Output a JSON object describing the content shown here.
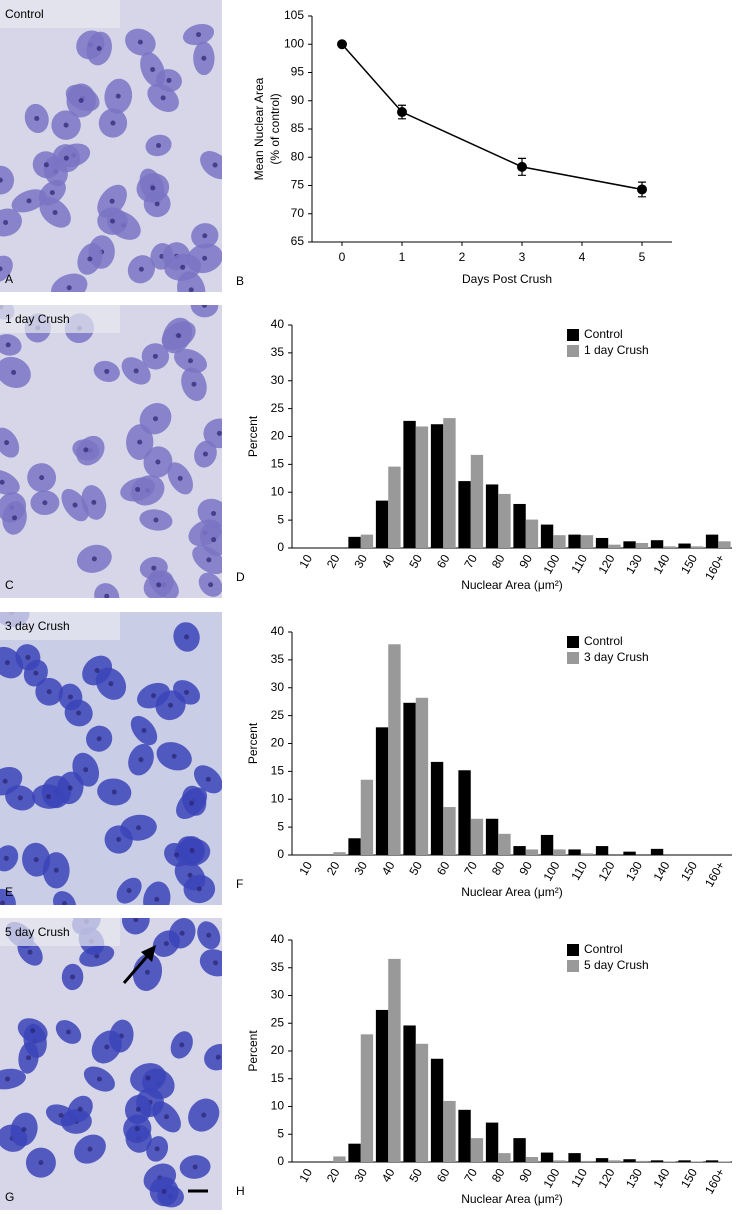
{
  "panels": [
    {
      "letter": "A",
      "label": "Control"
    },
    {
      "letter": "C",
      "label": "1 day Crush"
    },
    {
      "letter": "E",
      "label": "3 day Crush"
    },
    {
      "letter": "G",
      "label": "5 day Crush"
    }
  ],
  "chart_data": [
    {
      "type": "line",
      "panel_label": "B",
      "xlabel": "Days Post Crush",
      "ylabel": "Mean Nuclear Area",
      "ylabel_sub": "(% of control)",
      "x": [
        0,
        1,
        3,
        5
      ],
      "values": [
        100,
        88,
        78.3,
        74.3
      ],
      "errors": [
        0.3,
        1.2,
        1.5,
        1.3
      ],
      "color": "#000000",
      "xlim": [
        -0.5,
        5.5
      ],
      "xticks": [
        0,
        1,
        2,
        3,
        4,
        5
      ],
      "ylim": [
        65,
        105
      ],
      "yticks": [
        65,
        70,
        75,
        80,
        85,
        90,
        95,
        100,
        105
      ]
    },
    {
      "type": "bar",
      "panel_label": "D",
      "xlabel": "Nuclear Area (μm²)",
      "ylabel": "Percent",
      "legend": "upper right",
      "categories": [
        "10",
        "20",
        "30",
        "40",
        "50",
        "60",
        "70",
        "80",
        "90",
        "100",
        "110",
        "120",
        "130",
        "140",
        "150",
        "160+"
      ],
      "series": [
        {
          "name": "Control",
          "color": "#000000",
          "values": [
            0,
            0,
            2.0,
            8.5,
            22.8,
            22.2,
            12.0,
            11.4,
            7.9,
            4.2,
            2.4,
            1.8,
            1.2,
            1.4,
            0.8,
            2.4
          ]
        },
        {
          "name": "1 day Crush",
          "color": "#999999",
          "values": [
            0,
            0,
            2.4,
            14.6,
            21.8,
            23.3,
            16.7,
            9.7,
            5.1,
            2.3,
            2.3,
            0.6,
            0.9,
            0.3,
            0.3,
            1.2
          ]
        }
      ],
      "ylim": [
        0,
        40
      ],
      "yticks": [
        0,
        5,
        10,
        15,
        20,
        25,
        30,
        35,
        40
      ]
    },
    {
      "type": "bar",
      "panel_label": "F",
      "xlabel": "Nuclear Area (μm²)",
      "ylabel": "Percent",
      "legend": "upper right",
      "categories": [
        "10",
        "20",
        "30",
        "40",
        "50",
        "60",
        "70",
        "80",
        "90",
        "100",
        "110",
        "120",
        "130",
        "140",
        "150",
        "160+"
      ],
      "series": [
        {
          "name": "Control",
          "color": "#000000",
          "values": [
            0,
            0,
            3.0,
            22.9,
            27.3,
            16.7,
            15.2,
            6.5,
            1.6,
            3.6,
            1.0,
            1.6,
            0.6,
            1.1,
            0,
            0
          ]
        },
        {
          "name": "3 day Crush",
          "color": "#999999",
          "values": [
            0,
            0.5,
            13.5,
            37.8,
            28.2,
            8.6,
            6.5,
            3.8,
            1.0,
            1.0,
            0.3,
            0,
            0,
            0,
            0,
            0
          ]
        }
      ],
      "ylim": [
        0,
        40
      ],
      "yticks": [
        0,
        5,
        10,
        15,
        20,
        25,
        30,
        35,
        40
      ]
    },
    {
      "type": "bar",
      "panel_label": "H",
      "xlabel": "Nuclear Area (μm²)",
      "ylabel": "Percent",
      "legend": "upper right",
      "categories": [
        "10",
        "20",
        "30",
        "40",
        "50",
        "60",
        "70",
        "80",
        "90",
        "100",
        "110",
        "120",
        "130",
        "140",
        "150",
        "160+"
      ],
      "series": [
        {
          "name": "Control",
          "color": "#000000",
          "values": [
            0,
            0,
            3.3,
            27.4,
            24.6,
            18.6,
            9.4,
            7.1,
            4.3,
            1.7,
            1.6,
            0.7,
            0.5,
            0.3,
            0.3,
            0.3
          ]
        },
        {
          "name": "5 day Crush",
          "color": "#999999",
          "values": [
            0,
            1.0,
            23.0,
            36.6,
            21.3,
            11.0,
            4.3,
            1.6,
            0.9,
            0.3,
            0.2,
            0.3,
            0.2,
            0.1,
            0.1,
            0.1
          ]
        }
      ],
      "ylim": [
        0,
        40
      ],
      "yticks": [
        0,
        5,
        10,
        15,
        20,
        25,
        30,
        35,
        40
      ]
    }
  ]
}
